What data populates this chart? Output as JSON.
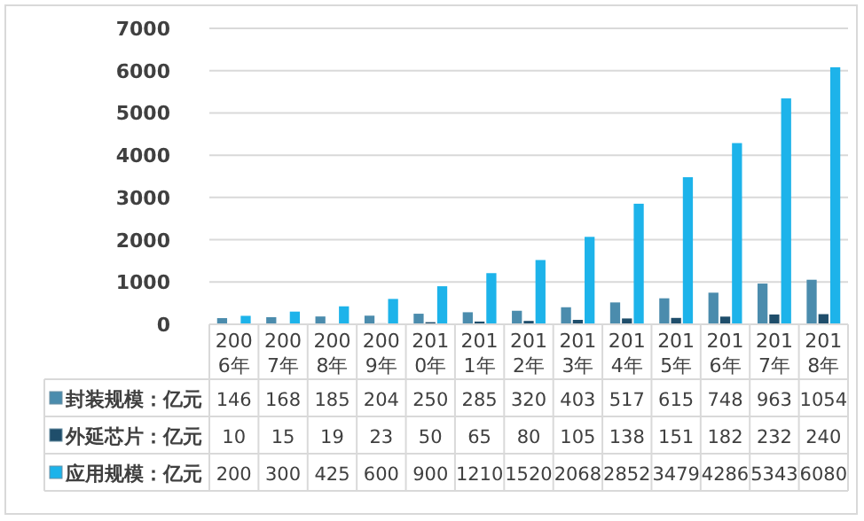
{
  "chart_data": {
    "type": "bar",
    "categories": [
      "2006年",
      "2007年",
      "2008年",
      "2009年",
      "2010年",
      "2011年",
      "2012年",
      "2013年",
      "2014年",
      "2015年",
      "2016年",
      "2017年",
      "2018年"
    ],
    "series": [
      {
        "name": "封装规模：亿元",
        "color": "#4b8cad",
        "values": [
          146,
          168,
          185,
          204,
          250,
          285,
          320,
          403,
          517,
          615,
          748,
          963,
          1054
        ]
      },
      {
        "name": "外延芯片：亿元",
        "color": "#1f4e6b",
        "values": [
          10,
          15,
          19,
          23,
          50,
          65,
          80,
          105,
          138,
          151,
          182,
          232,
          240
        ]
      },
      {
        "name": "应用规模：亿元",
        "color": "#1db3ea",
        "values": [
          200,
          300,
          425,
          600,
          900,
          1210,
          1520,
          2068,
          2852,
          3479,
          4286,
          5343,
          6080
        ]
      }
    ],
    "ylim": [
      0,
      7000
    ],
    "yticks": [
      0,
      1000,
      2000,
      3000,
      4000,
      5000,
      6000,
      7000
    ],
    "grid": "y",
    "legend": "bottom",
    "data_labels": true
  }
}
